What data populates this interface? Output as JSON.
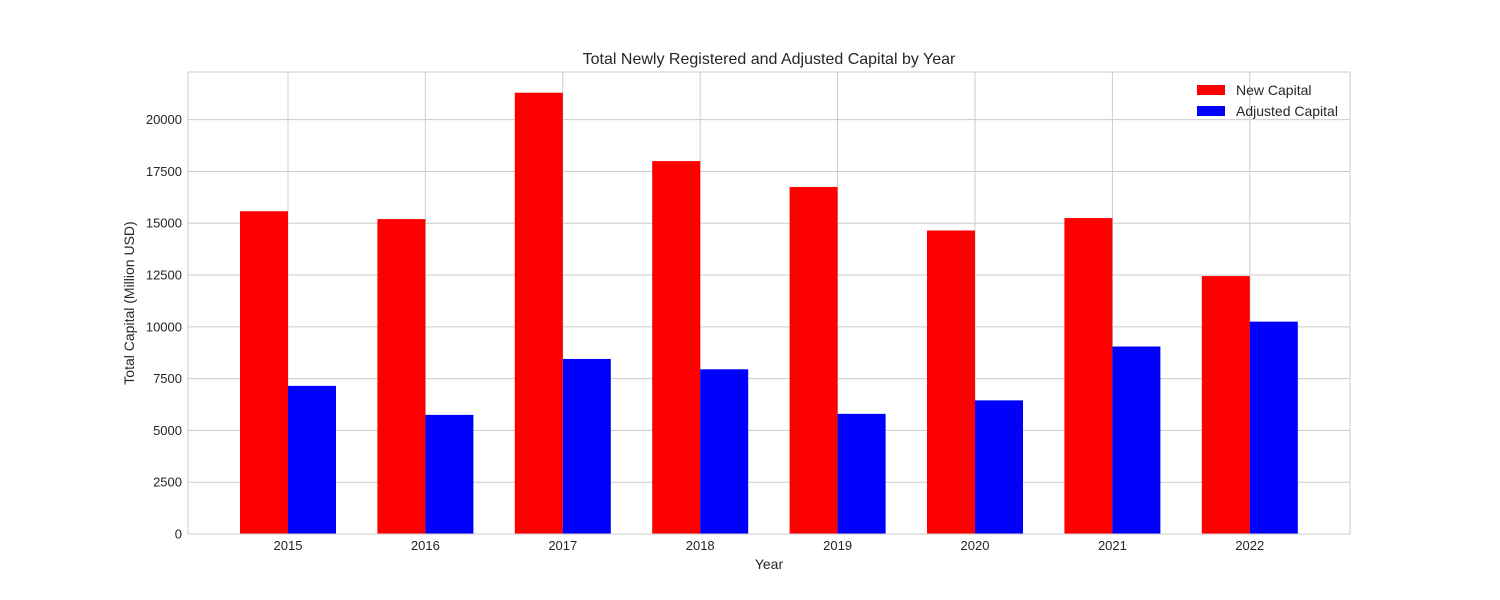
{
  "chart_data": {
    "type": "bar",
    "title": "Total Newly Registered and Adjusted Capital by Year",
    "xlabel": "Year",
    "ylabel": "Total Capital (Million USD)",
    "categories": [
      "2015",
      "2016",
      "2017",
      "2018",
      "2019",
      "2020",
      "2021",
      "2022"
    ],
    "series": [
      {
        "name": "New Capital",
        "color": "#ff0000",
        "values": [
          15580,
          15200,
          21300,
          18000,
          16750,
          14650,
          15250,
          12450
        ]
      },
      {
        "name": "Adjusted Capital",
        "color": "#0000ff",
        "values": [
          7150,
          5750,
          8450,
          7950,
          5800,
          6450,
          9050,
          10250
        ]
      }
    ],
    "ylim": [
      0,
      22300
    ],
    "yticks": [
      0,
      2500,
      5000,
      7500,
      10000,
      12500,
      15000,
      17500,
      20000
    ],
    "grid": true,
    "legend_position": "top-right"
  }
}
